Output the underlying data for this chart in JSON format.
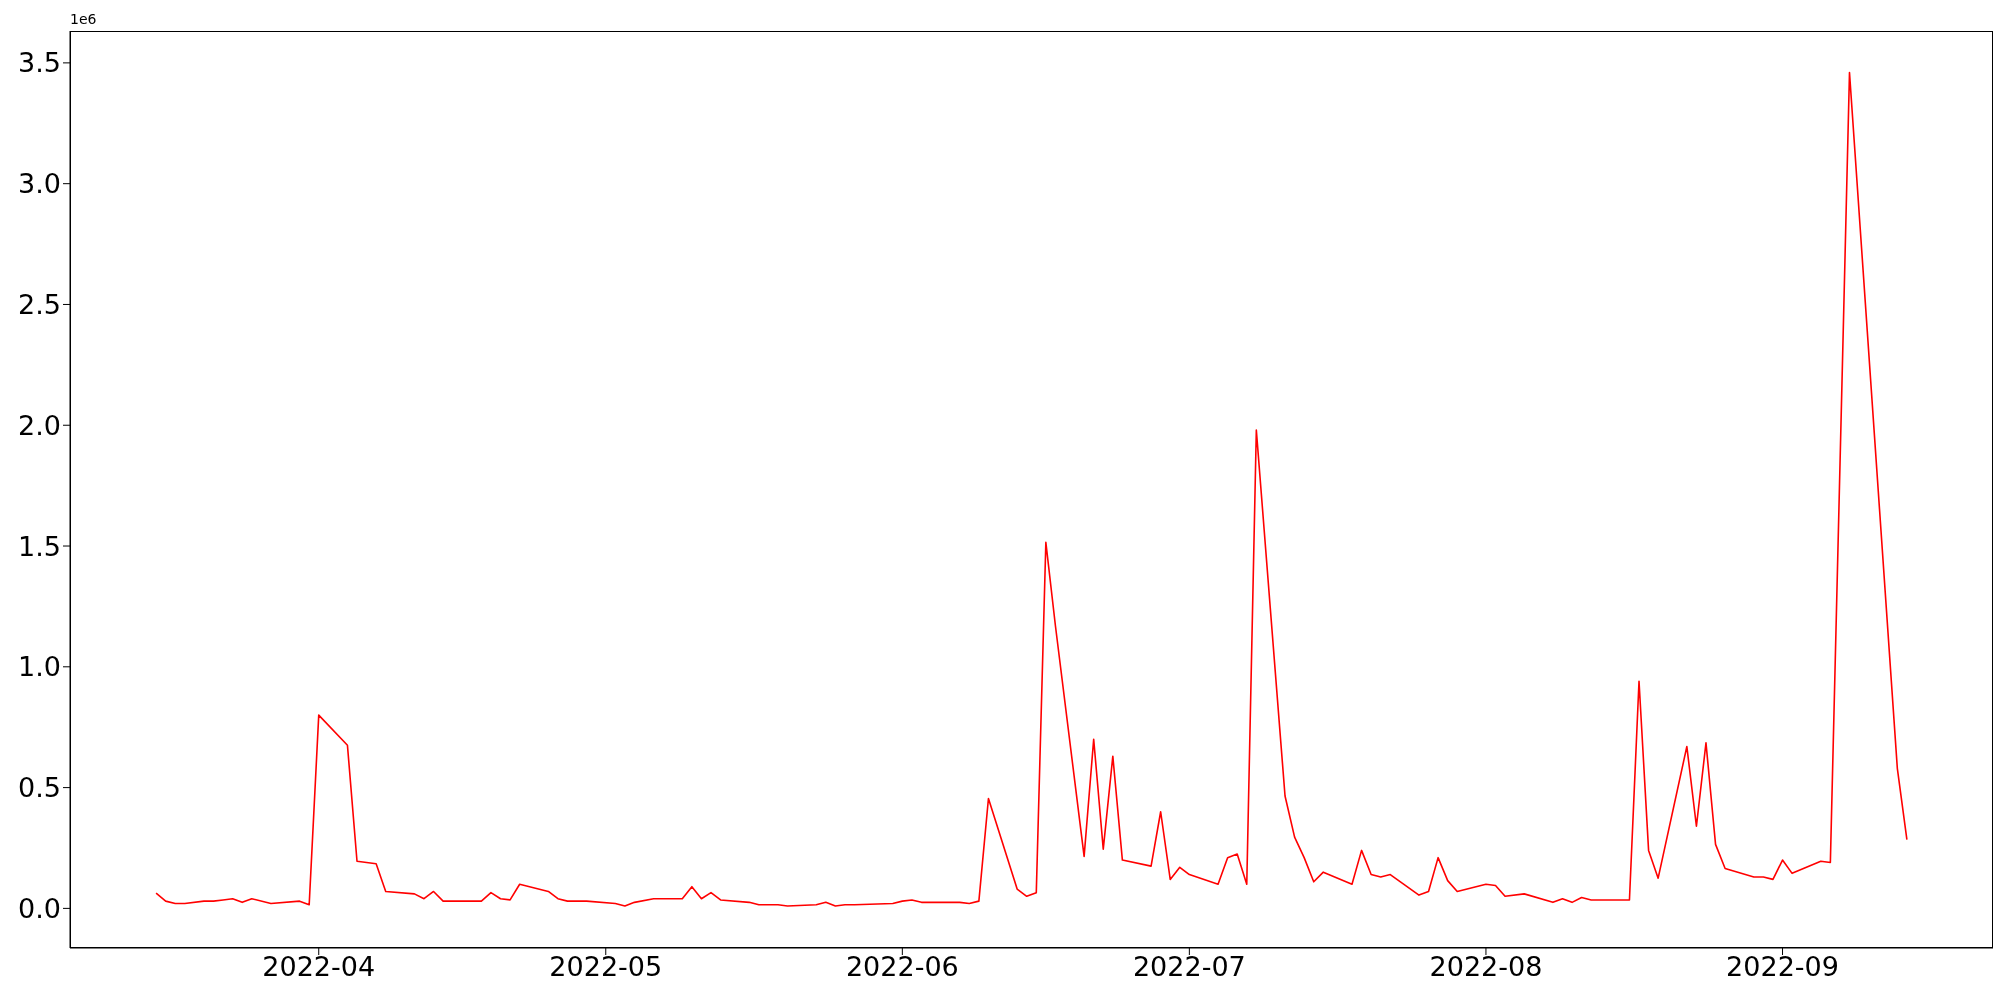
{
  "chart_data": {
    "type": "line",
    "x": [
      "2022-03-15",
      "2022-03-16",
      "2022-03-17",
      "2022-03-18",
      "2022-03-20",
      "2022-03-21",
      "2022-03-22",
      "2022-03-23",
      "2022-03-24",
      "2022-03-25",
      "2022-03-27",
      "2022-03-30",
      "2022-03-31",
      "2022-04-01",
      "2022-04-04",
      "2022-04-05",
      "2022-04-07",
      "2022-04-08",
      "2022-04-11",
      "2022-04-12",
      "2022-04-13",
      "2022-04-14",
      "2022-04-18",
      "2022-04-19",
      "2022-04-20",
      "2022-04-21",
      "2022-04-22",
      "2022-04-25",
      "2022-04-26",
      "2022-04-27",
      "2022-04-29",
      "2022-05-02",
      "2022-05-03",
      "2022-05-04",
      "2022-05-06",
      "2022-05-09",
      "2022-05-10",
      "2022-05-11",
      "2022-05-12",
      "2022-05-13",
      "2022-05-16",
      "2022-05-17",
      "2022-05-19",
      "2022-05-20",
      "2022-05-23",
      "2022-05-24",
      "2022-05-25",
      "2022-05-26",
      "2022-05-27",
      "2022-05-31",
      "2022-06-01",
      "2022-06-02",
      "2022-06-03",
      "2022-06-07",
      "2022-06-08",
      "2022-06-09",
      "2022-06-10",
      "2022-06-13",
      "2022-06-14",
      "2022-06-15",
      "2022-06-16",
      "2022-06-17",
      "2022-06-20",
      "2022-06-21",
      "2022-06-22",
      "2022-06-23",
      "2022-06-24",
      "2022-06-27",
      "2022-06-28",
      "2022-06-29",
      "2022-06-30",
      "2022-07-01",
      "2022-07-04",
      "2022-07-05",
      "2022-07-06",
      "2022-07-07",
      "2022-07-08",
      "2022-07-11",
      "2022-07-12",
      "2022-07-13",
      "2022-07-14",
      "2022-07-15",
      "2022-07-18",
      "2022-07-19",
      "2022-07-20",
      "2022-07-21",
      "2022-07-22",
      "2022-07-25",
      "2022-07-26",
      "2022-07-27",
      "2022-07-28",
      "2022-07-29",
      "2022-08-01",
      "2022-08-02",
      "2022-08-03",
      "2022-08-05",
      "2022-08-08",
      "2022-08-09",
      "2022-08-10",
      "2022-08-11",
      "2022-08-12",
      "2022-08-16",
      "2022-08-17",
      "2022-08-18",
      "2022-08-19",
      "2022-08-22",
      "2022-08-23",
      "2022-08-24",
      "2022-08-25",
      "2022-08-26",
      "2022-08-29",
      "2022-08-30",
      "2022-08-31",
      "2022-09-01",
      "2022-09-02",
      "2022-09-05",
      "2022-09-06",
      "2022-09-08",
      "2022-09-13",
      "2022-09-14"
    ],
    "series": [
      {
        "color": "#ff0000",
        "values": [
          0.063,
          0.03,
          0.02,
          0.02,
          0.03,
          0.03,
          0.035,
          0.04,
          0.025,
          0.04,
          0.02,
          0.03,
          0.015,
          0.8,
          0.675,
          0.195,
          0.185,
          0.07,
          0.06,
          0.04,
          0.07,
          0.03,
          0.03,
          0.065,
          0.04,
          0.035,
          0.1,
          0.07,
          0.04,
          0.03,
          0.03,
          0.02,
          0.01,
          0.025,
          0.04,
          0.04,
          0.09,
          0.04,
          0.065,
          0.035,
          0.025,
          0.015,
          0.015,
          0.01,
          0.015,
          0.025,
          0.01,
          0.015,
          0.015,
          0.02,
          0.03,
          0.035,
          0.025,
          0.025,
          0.02,
          0.03,
          0.455,
          0.08,
          0.05,
          0.065,
          1.515,
          1.17,
          0.215,
          0.7,
          0.245,
          0.63,
          0.2,
          0.175,
          0.4,
          0.12,
          0.17,
          0.14,
          0.1,
          0.21,
          0.225,
          0.1,
          1.98,
          0.465,
          0.295,
          0.21,
          0.11,
          0.15,
          0.1,
          0.24,
          0.14,
          0.13,
          0.14,
          0.055,
          0.07,
          0.21,
          0.115,
          0.07,
          0.1,
          0.095,
          0.05,
          0.06,
          0.025,
          0.04,
          0.025,
          0.045,
          0.035,
          0.035,
          0.94,
          0.24,
          0.125,
          0.67,
          0.34,
          0.685,
          0.265,
          0.165,
          0.13,
          0.13,
          0.12,
          0.2,
          0.145,
          0.195,
          0.19,
          3.46,
          0.58,
          0.285
        ]
      }
    ],
    "xlim": [
      "2022-03-06",
      "2022-09-23"
    ],
    "xticks": [
      "2022-04",
      "2022-05",
      "2022-06",
      "2022-07",
      "2022-08",
      "2022-09"
    ],
    "ylim": [
      -0.164,
      3.632
    ],
    "yticks": [
      {
        "value": 0,
        "label": "0.0"
      },
      0.5,
      {
        "value": 1,
        "label": "1.0"
      },
      1.5,
      {
        "value": 2,
        "label": "2.0"
      },
      2.5,
      {
        "value": 3,
        "label": "3.0"
      },
      3.5
    ],
    "annotations": [
      "1e6"
    ],
    "grid": false,
    "marker": "none",
    "line_style": "solid"
  }
}
